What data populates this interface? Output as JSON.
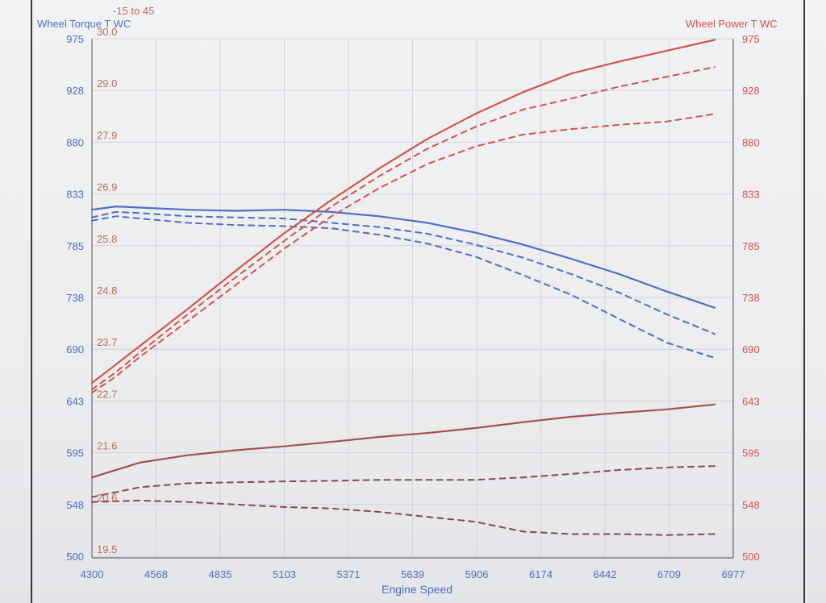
{
  "chart_data": {
    "type": "line",
    "xlabel": "Engine Speed",
    "x_ticks": [
      "4300",
      "4568",
      "4835",
      "5103",
      "5371",
      "5639",
      "5906",
      "6174",
      "6442",
      "6709",
      "6977"
    ],
    "xlim": [
      4300,
      6977
    ],
    "left_axis": {
      "label": "Wheel Torque T WC",
      "ticks": [
        "975",
        "928",
        "880",
        "833",
        "785",
        "738",
        "690",
        "643",
        "595",
        "548",
        "500"
      ],
      "range": [
        500,
        975
      ]
    },
    "left_axis_2": {
      "label": "-15 to 45",
      "ticks": [
        "30.0",
        "29.0",
        "27.9",
        "26.9",
        "25.8",
        "24.8",
        "23.7",
        "22.7",
        "21.6",
        "20.6",
        "19.5"
      ],
      "range": [
        19.5,
        30.0
      ]
    },
    "right_axis": {
      "label": "Wheel Power T WC",
      "ticks": [
        "975",
        "928",
        "880",
        "833",
        "785",
        "738",
        "690",
        "643",
        "595",
        "548",
        "500"
      ],
      "range": [
        500,
        975
      ]
    },
    "grid": true,
    "series": [
      {
        "axis": "left",
        "color": "#4d6fc4",
        "style": "solid",
        "x": [
          4300,
          4400,
          4500,
          4700,
          4900,
          5100,
          5300,
          5500,
          5700,
          5900,
          6100,
          6300,
          6500,
          6700,
          6900
        ],
        "values": [
          818,
          821,
          820,
          818,
          817,
          818,
          816,
          812,
          806,
          797,
          786,
          773,
          759,
          743,
          728
        ]
      },
      {
        "axis": "left",
        "color": "#4d6fc4",
        "style": "dashed",
        "x": [
          4300,
          4400,
          4500,
          4700,
          4900,
          5100,
          5300,
          5500,
          5700,
          5900,
          6100,
          6300,
          6500,
          6700,
          6900
        ],
        "values": [
          811,
          816,
          815,
          812,
          811,
          810,
          806,
          802,
          796,
          786,
          774,
          759,
          742,
          722,
          704
        ]
      },
      {
        "axis": "left",
        "color": "#4d6fc4",
        "style": "dashed",
        "x": [
          4300,
          4400,
          4500,
          4700,
          4900,
          5100,
          5300,
          5500,
          5700,
          5900,
          6100,
          6300,
          6500,
          6700,
          6900
        ],
        "values": [
          808,
          812,
          810,
          806,
          804,
          803,
          801,
          795,
          787,
          775,
          758,
          740,
          718,
          696,
          682
        ]
      },
      {
        "axis": "right",
        "color": "#d2554a",
        "style": "solid",
        "x": [
          4300,
          4400,
          4500,
          4700,
          4900,
          5100,
          5300,
          5500,
          5700,
          5900,
          6100,
          6300,
          6500,
          6700,
          6900
        ],
        "values": [
          659,
          676,
          693,
          727,
          762,
          796,
          827,
          856,
          883,
          906,
          926,
          943,
          954,
          964,
          974
        ]
      },
      {
        "axis": "right",
        "color": "#d2554a",
        "style": "dashed",
        "x": [
          4300,
          4400,
          4500,
          4700,
          4900,
          5100,
          5300,
          5500,
          5700,
          5900,
          6100,
          6300,
          6500,
          6700,
          6900
        ],
        "values": [
          653,
          669,
          687,
          722,
          756,
          789,
          821,
          849,
          874,
          894,
          910,
          920,
          931,
          940,
          949
        ]
      },
      {
        "axis": "right",
        "color": "#d2554a",
        "style": "dashed",
        "x": [
          4300,
          4400,
          4500,
          4700,
          4900,
          5100,
          5300,
          5500,
          5700,
          5900,
          6100,
          6300,
          6500,
          6700,
          6900
        ],
        "values": [
          650,
          665,
          683,
          716,
          749,
          782,
          812,
          838,
          860,
          876,
          887,
          892,
          896,
          899,
          906
        ]
      },
      {
        "axis": "left2",
        "color": "#a2544d",
        "style": "solid",
        "x": [
          4300,
          4500,
          4700,
          4900,
          5100,
          5300,
          5500,
          5700,
          5900,
          6100,
          6300,
          6500,
          6700,
          6900
        ],
        "values": [
          21.1,
          21.4,
          21.55,
          21.65,
          21.73,
          21.82,
          21.92,
          22.0,
          22.1,
          22.22,
          22.33,
          22.41,
          22.48,
          22.58
        ]
      },
      {
        "axis": "left2",
        "color": "#8c4a45",
        "style": "dashed",
        "x": [
          4300,
          4500,
          4700,
          4900,
          5100,
          5300,
          5500,
          5700,
          5900,
          6100,
          6300,
          6500,
          6700,
          6900
        ],
        "values": [
          20.7,
          20.9,
          20.98,
          21.0,
          21.02,
          21.03,
          21.05,
          21.05,
          21.05,
          21.1,
          21.17,
          21.25,
          21.3,
          21.33
        ]
      },
      {
        "axis": "left2",
        "color": "#8c4a45",
        "style": "dashed",
        "x": [
          4300,
          4500,
          4700,
          4900,
          5100,
          5300,
          5500,
          5700,
          5900,
          6100,
          6300,
          6500,
          6700,
          6900
        ],
        "values": [
          20.6,
          20.63,
          20.6,
          20.55,
          20.5,
          20.47,
          20.4,
          20.3,
          20.2,
          20.0,
          19.95,
          19.95,
          19.93,
          19.95
        ]
      }
    ]
  }
}
